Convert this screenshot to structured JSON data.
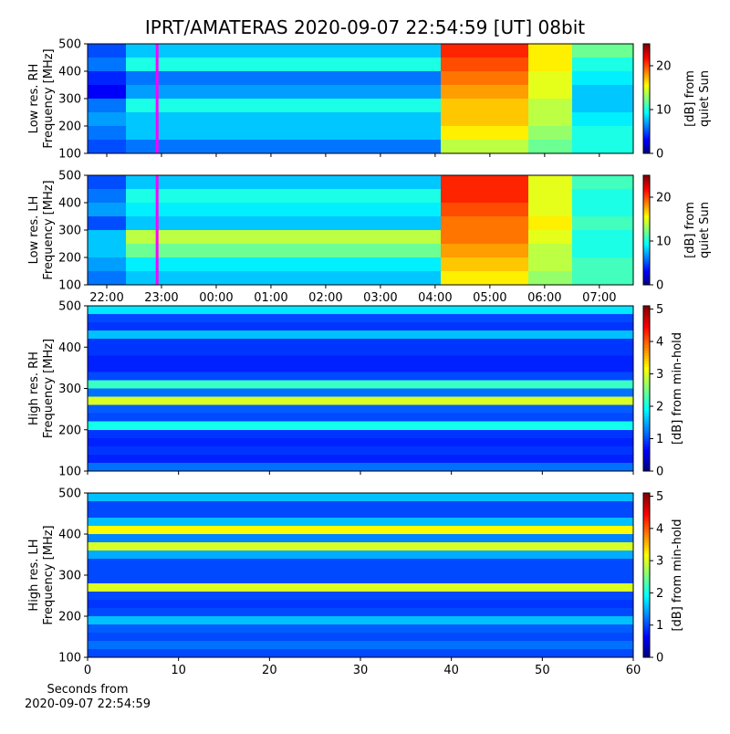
{
  "title": "IPRT/AMATERAS 2020-09-07 22:54:59 [UT]   08bit",
  "colormap": "jet",
  "chart_data": [
    {
      "type": "heatmap",
      "ylabel": [
        "Low res. RH",
        "Frequency [MHz]"
      ],
      "x": [
        21.65,
        22.35,
        28.1,
        29.7,
        30.5,
        31.62
      ],
      "y": [
        100,
        150,
        200,
        250,
        300,
        350,
        400,
        450,
        500
      ],
      "values": [
        [
          5,
          6,
          14,
          12,
          10
        ],
        [
          6,
          8,
          16,
          13,
          10
        ],
        [
          7,
          8,
          17,
          14,
          9
        ],
        [
          6,
          10,
          17,
          14,
          8
        ],
        [
          3,
          7,
          18,
          15,
          8
        ],
        [
          4,
          6,
          19,
          15,
          9
        ],
        [
          6,
          10,
          20,
          16,
          10
        ],
        [
          5,
          8,
          21,
          16,
          12
        ]
      ],
      "xlim": [
        21.65,
        31.62
      ],
      "xticks": [
        22,
        23,
        24,
        25,
        26,
        27,
        28,
        29,
        30,
        31
      ],
      "ylim": [
        100,
        500
      ],
      "yticks": [
        100,
        200,
        300,
        400,
        500
      ],
      "zlim": [
        0,
        25
      ],
      "zticks": [
        0,
        10,
        20
      ],
      "colorbar_label": [
        "[dB] from",
        "quiet Sun"
      ],
      "marker_x": 22.92,
      "marker_color": "#ff00ff"
    },
    {
      "type": "heatmap",
      "ylabel": [
        "Low res. LH",
        "Frequency [MHz]"
      ],
      "x": [
        21.65,
        22.35,
        28.1,
        29.7,
        30.5,
        31.62
      ],
      "y": [
        100,
        150,
        200,
        250,
        300,
        350,
        400,
        450,
        500
      ],
      "values": [
        [
          6,
          8,
          16,
          13,
          11
        ],
        [
          7,
          9,
          17,
          14,
          11
        ],
        [
          8,
          12,
          18,
          14,
          10
        ],
        [
          8,
          14,
          19,
          15,
          10
        ],
        [
          5,
          8,
          19,
          16,
          11
        ],
        [
          7,
          9,
          20,
          15,
          10
        ],
        [
          6,
          10,
          21,
          15,
          10
        ],
        [
          5,
          8,
          21,
          15,
          11
        ]
      ],
      "xlim": [
        21.65,
        31.62
      ],
      "xticks": [
        {
          "value": 22,
          "label": "22:00"
        },
        {
          "value": 23,
          "label": "23:00"
        },
        {
          "value": 24,
          "label": "00:00"
        },
        {
          "value": 25,
          "label": "01:00"
        },
        {
          "value": 26,
          "label": "02:00"
        },
        {
          "value": 27,
          "label": "03:00"
        },
        {
          "value": 28,
          "label": "04:00"
        },
        {
          "value": 29,
          "label": "05:00"
        },
        {
          "value": 30,
          "label": "06:00"
        },
        {
          "value": 31,
          "label": "07:00"
        }
      ],
      "ylim": [
        100,
        500
      ],
      "yticks": [
        100,
        200,
        300,
        400,
        500
      ],
      "zlim": [
        0,
        25
      ],
      "zticks": [
        0,
        10,
        20
      ],
      "colorbar_label": [
        "[dB] from",
        "quiet Sun"
      ],
      "marker_x": 22.92,
      "marker_color": "#ff00ff"
    },
    {
      "type": "heatmap",
      "ylabel": [
        "High res. RH",
        "Frequency [MHz]"
      ],
      "x": [
        0,
        60
      ],
      "y": [
        100,
        120,
        140,
        160,
        180,
        200,
        220,
        240,
        260,
        280,
        300,
        320,
        340,
        360,
        380,
        400,
        420,
        440,
        460,
        480,
        500
      ],
      "values": [
        [
          1.2
        ],
        [
          0.8
        ],
        [
          0.9
        ],
        [
          0.8
        ],
        [
          0.9
        ],
        [
          2.0
        ],
        [
          1.0
        ],
        [
          1.1
        ],
        [
          3.0
        ],
        [
          1.2
        ],
        [
          2.2
        ],
        [
          1.0
        ],
        [
          0.8
        ],
        [
          0.8
        ],
        [
          0.9
        ],
        [
          0.9
        ],
        [
          1.6
        ],
        [
          0.9
        ],
        [
          1.0
        ],
        [
          1.8
        ]
      ],
      "xlim": [
        0,
        60
      ],
      "xticks": [
        0,
        10,
        20,
        30,
        40,
        50,
        60
      ],
      "ylim": [
        100,
        500
      ],
      "yticks": [
        100,
        200,
        300,
        400,
        500
      ],
      "zlim": [
        0,
        5.1
      ],
      "zticks": [
        0,
        1,
        2,
        3,
        4,
        5
      ],
      "colorbar_label": [
        "[dB] from min-hold"
      ]
    },
    {
      "type": "heatmap",
      "ylabel": [
        "High res. LH",
        "Frequency [MHz]"
      ],
      "x": [
        0,
        60
      ],
      "y": [
        100,
        120,
        140,
        160,
        180,
        200,
        220,
        240,
        260,
        280,
        300,
        320,
        340,
        360,
        380,
        400,
        420,
        440,
        460,
        480,
        500
      ],
      "values": [
        [
          1.0
        ],
        [
          1.2
        ],
        [
          1.0
        ],
        [
          1.1
        ],
        [
          1.6
        ],
        [
          1.0
        ],
        [
          0.9
        ],
        [
          1.0
        ],
        [
          3.0
        ],
        [
          1.0
        ],
        [
          1.0
        ],
        [
          1.0
        ],
        [
          1.5
        ],
        [
          3.0
        ],
        [
          1.3
        ],
        [
          3.2
        ],
        [
          1.6
        ],
        [
          1.0
        ],
        [
          1.0
        ],
        [
          1.6
        ]
      ],
      "xlim": [
        0,
        60
      ],
      "xticks": [
        0,
        10,
        20,
        30,
        40,
        50,
        60
      ],
      "ylim": [
        100,
        500
      ],
      "yticks": [
        100,
        200,
        300,
        400,
        500
      ],
      "zlim": [
        0,
        5.1
      ],
      "zticks": [
        0,
        1,
        2,
        3,
        4,
        5
      ],
      "colorbar_label": [
        "[dB] from min-hold"
      ],
      "xlabel": [
        "Seconds from",
        "2020-09-07 22:54:59"
      ]
    }
  ]
}
